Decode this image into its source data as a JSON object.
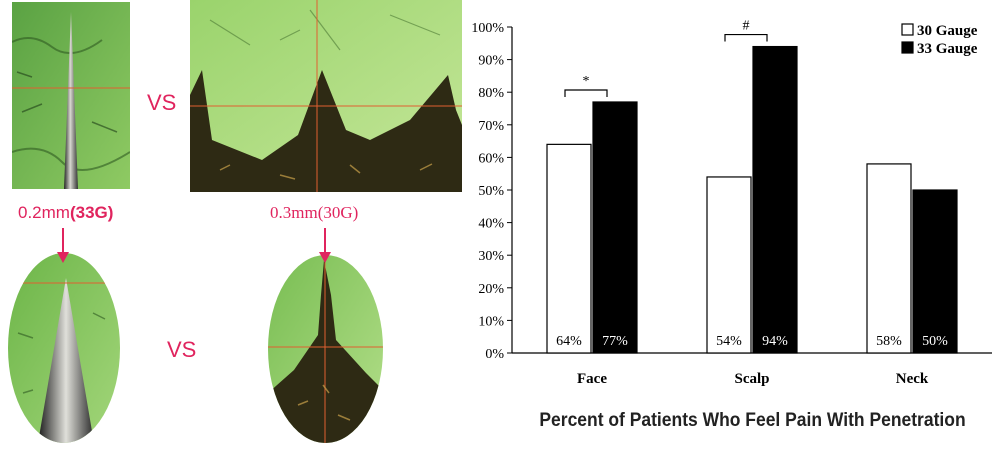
{
  "left_panel": {
    "vs_top": "VS",
    "vs_bottom": "VS",
    "label_33g_prefix": "0.2mm",
    "label_33g_bold": "(33G)",
    "label_30g": "0.3mm(30G)"
  },
  "colors": {
    "accent": "#e0245e",
    "micro_green": "#7fbf55",
    "micro_dark": "#2e2a14",
    "bar_black": "#000000",
    "bar_white": "#ffffff"
  },
  "chart_data": {
    "type": "bar",
    "title": "Percent of Patients Who Feel Pain With Penetration",
    "categories": [
      "Face",
      "Scalp",
      "Neck"
    ],
    "series": [
      {
        "name": "30 Gauge",
        "values": [
          64,
          54,
          58
        ],
        "labels": [
          "64%",
          "54%",
          "58%"
        ],
        "fill": "#ffffff"
      },
      {
        "name": "33 Gauge",
        "values": [
          77,
          94,
          50
        ],
        "labels": [
          "77%",
          "94%",
          "50%"
        ],
        "fill": "#000000"
      }
    ],
    "ylim": [
      0,
      100
    ],
    "yticks": [
      0,
      10,
      20,
      30,
      40,
      50,
      60,
      70,
      80,
      90,
      100
    ],
    "ytick_labels": [
      "0%",
      "10%",
      "20%",
      "30%",
      "40%",
      "50%",
      "60%",
      "70%",
      "80%",
      "90%",
      "100%"
    ],
    "xlabel": "",
    "ylabel": "",
    "grid": false,
    "legend_position": "top-right",
    "significance": [
      {
        "category": "Face",
        "symbol": "*"
      },
      {
        "category": "Scalp",
        "symbol": "#"
      }
    ]
  }
}
